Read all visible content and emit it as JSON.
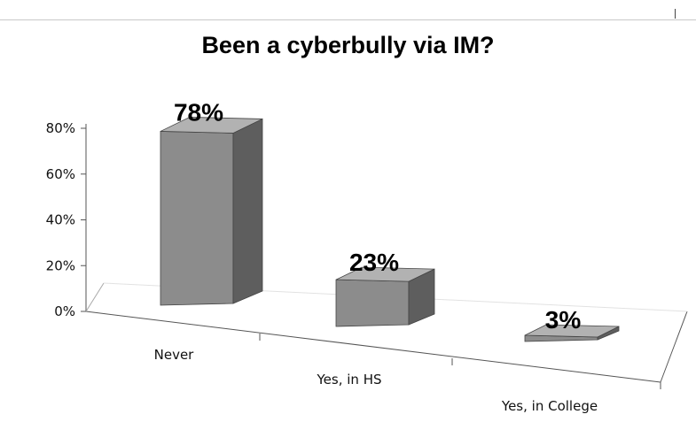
{
  "chart_data": {
    "type": "bar",
    "title": "Been a cyberbully via IM?",
    "categories": [
      "Never",
      "Yes, in HS",
      "Yes, in College"
    ],
    "values": [
      78,
      23,
      3
    ],
    "data_labels": [
      "78%",
      "23%",
      "3%"
    ],
    "y_ticks": [
      "0%",
      "20%",
      "40%",
      "60%",
      "80%"
    ],
    "ylim": [
      0,
      80
    ],
    "xlabel": "",
    "ylabel": "",
    "grid": false,
    "legend": "none",
    "style": "3d-bar",
    "colors": {
      "front": "#8c8c8c",
      "top": "#b2b2b2",
      "side": "#5e5e5e"
    }
  }
}
